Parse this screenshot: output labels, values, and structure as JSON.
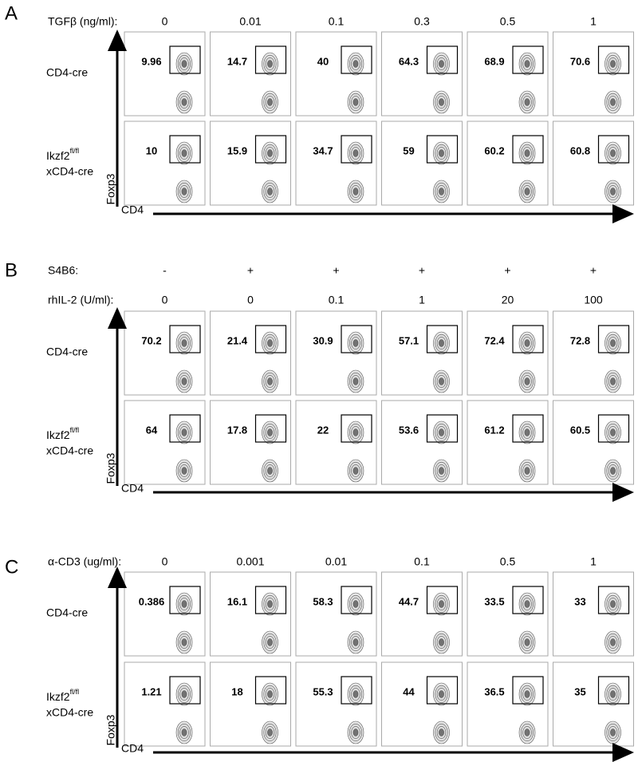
{
  "panels": [
    {
      "letter": "A",
      "headers": [
        {
          "label": "TGFβ (ng/ml):",
          "values": [
            "0",
            "0.01",
            "0.1",
            "0.3",
            "0.5",
            "1"
          ]
        }
      ],
      "rows": [
        {
          "label": "CD4-cre",
          "values": [
            "9.96",
            "14.7",
            "40",
            "64.3",
            "68.9",
            "70.6"
          ]
        },
        {
          "label": {
            "name": "Ikzf2",
            "sup": "fl/fl",
            "line2": "xCD4-cre"
          },
          "values": [
            "10",
            "15.9",
            "34.7",
            "59",
            "60.2",
            "60.8"
          ]
        }
      ],
      "x_axis": "CD4",
      "y_axis": "Foxp3"
    },
    {
      "letter": "B",
      "headers": [
        {
          "label": "S4B6:",
          "values": [
            "-",
            "+",
            "+",
            "+",
            "+",
            "+"
          ]
        },
        {
          "label": "rhIL-2 (U/ml):",
          "values": [
            "0",
            "0",
            "0.1",
            "1",
            "20",
            "100"
          ]
        }
      ],
      "rows": [
        {
          "label": "CD4-cre",
          "values": [
            "70.2",
            "21.4",
            "30.9",
            "57.1",
            "72.4",
            "72.8"
          ]
        },
        {
          "label": {
            "name": "Ikzf2",
            "sup": "fl/fl",
            "line2": "xCD4-cre"
          },
          "values": [
            "64",
            "17.8",
            "22",
            "53.6",
            "61.2",
            "60.5"
          ]
        }
      ],
      "x_axis": "CD4",
      "y_axis": "Foxp3"
    },
    {
      "letter": "C",
      "headers": [
        {
          "label": "α-CD3 (ug/ml):",
          "values": [
            "0",
            "0.001",
            "0.01",
            "0.1",
            "0.5",
            "1"
          ]
        }
      ],
      "rows": [
        {
          "label": "CD4-cre",
          "values": [
            "0.386",
            "16.1",
            "58.3",
            "44.7",
            "33.5",
            "33"
          ]
        },
        {
          "label": {
            "name": "Ikzf2",
            "sup": "fl/fl",
            "line2": "xCD4-cre"
          },
          "values": [
            "1.21",
            "18",
            "55.3",
            "44",
            "36.5",
            "35"
          ]
        }
      ],
      "x_axis": "CD4",
      "y_axis": "Foxp3"
    }
  ]
}
